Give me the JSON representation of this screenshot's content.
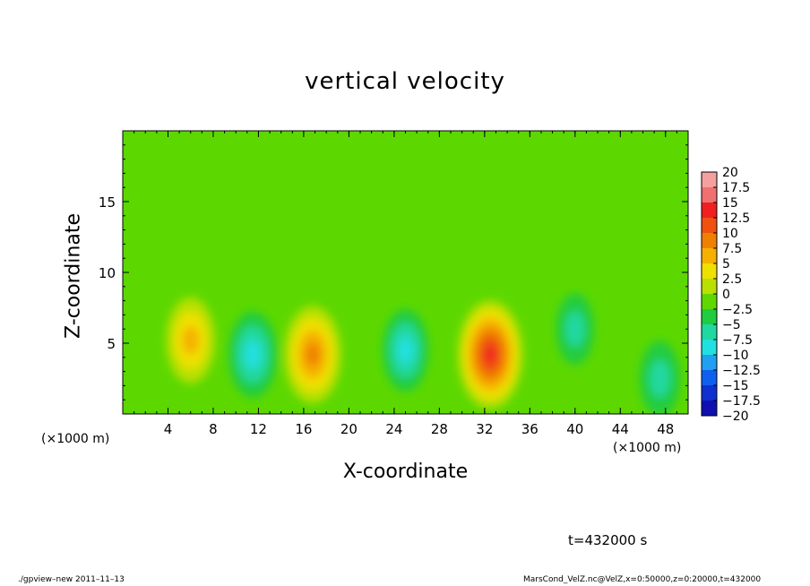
{
  "chart_data": {
    "type": "heatmap",
    "title": "vertical velocity",
    "xlabel": "X-coordinate",
    "ylabel": "Z-coordinate",
    "xunit_left": "(×1000 m)",
    "xunit_right": "(×1000 m)",
    "xlim": [
      0,
      50
    ],
    "ylim": [
      0,
      20
    ],
    "x_ticks": [
      4,
      8,
      12,
      16,
      20,
      24,
      28,
      32,
      36,
      40,
      44,
      48
    ],
    "y_ticks": [
      5,
      10,
      15
    ],
    "colorbar": {
      "levels": [
        20,
        17.5,
        15,
        12.5,
        10,
        7.5,
        5,
        2.5,
        0,
        -2.5,
        -5,
        -7.5,
        -10,
        -12.5,
        -15,
        -17.5,
        -20
      ],
      "labels": [
        "20",
        "17.5",
        "15",
        "12.5",
        "10",
        "7.5",
        "5",
        "2.5",
        "0",
        "−2.5",
        "−5",
        "−7.5",
        "−10",
        "−12.5",
        "−15",
        "−17.5",
        "−20"
      ],
      "colors": [
        "#f5a0a0",
        "#f07070",
        "#f02020",
        "#f05010",
        "#f08000",
        "#f5b000",
        "#f0e000",
        "#b8e000",
        "#60d800",
        "#20cc40",
        "#20d8a0",
        "#20e0e0",
        "#20a0f0",
        "#1060f0",
        "#1030d0",
        "#1010b0",
        "#7020b0"
      ]
    },
    "features": [
      {
        "x": 6,
        "z": 5.2,
        "value": 8
      },
      {
        "x": 11.5,
        "z": 4.2,
        "value": -8
      },
      {
        "x": 16.8,
        "z": 4.2,
        "value": 11
      },
      {
        "x": 25,
        "z": 4.5,
        "value": -7
      },
      {
        "x": 32.5,
        "z": 4.2,
        "value": 14
      },
      {
        "x": 40,
        "z": 6,
        "value": -4
      },
      {
        "x": 47.5,
        "z": 2.5,
        "value": -5
      }
    ]
  },
  "time_label": "t=432000 s",
  "footer_left": "./gpview–new   2011–11–13",
  "footer_right": "MarsCond_VelZ.nc@VelZ,x=0:50000,z=0:20000,t=432000"
}
